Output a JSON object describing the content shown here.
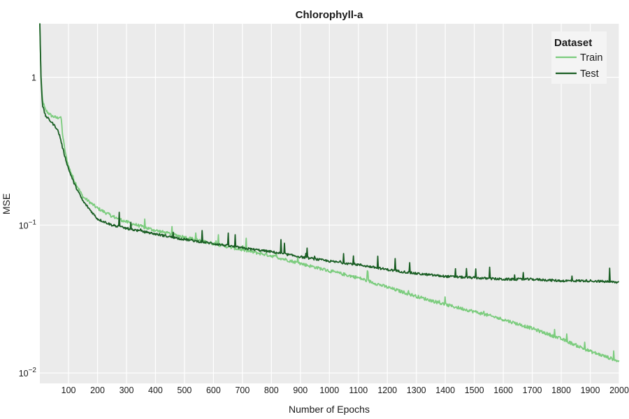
{
  "chart_data": {
    "type": "line",
    "title": "Chlorophyll-a",
    "xlabel": "Number of Epochs",
    "ylabel": "MSE",
    "x_range": [
      1,
      2000
    ],
    "ylim": [
      0.0085,
      2.3
    ],
    "yscale": "log",
    "grid": true,
    "x_ticks": [
      100,
      200,
      300,
      400,
      500,
      600,
      700,
      800,
      900,
      1000,
      1100,
      1200,
      1300,
      1400,
      1500,
      1600,
      1700,
      1800,
      1900,
      2000
    ],
    "y_ticks": [
      {
        "value": 1,
        "base": "1",
        "exp": ""
      },
      {
        "value": 0.1,
        "base": "10",
        "exp": "−1"
      },
      {
        "value": 0.01,
        "base": "10",
        "exp": "−2"
      }
    ],
    "legend": {
      "title": "Dataset",
      "position": "top-right"
    },
    "series": [
      {
        "name": "Train",
        "color": "#7bcc7d",
        "x": [
          1,
          5,
          10,
          20,
          40,
          60,
          70,
          75,
          80,
          90,
          100,
          120,
          150,
          200,
          250,
          300,
          350,
          400,
          500,
          600,
          700,
          800,
          900,
          1000,
          1100,
          1200,
          1300,
          1400,
          1500,
          1600,
          1700,
          1800,
          1900,
          2000
        ],
        "values": [
          2.3,
          1.0,
          0.7,
          0.6,
          0.55,
          0.53,
          0.54,
          0.52,
          0.4,
          0.3,
          0.25,
          0.2,
          0.155,
          0.13,
          0.115,
          0.105,
          0.098,
          0.092,
          0.083,
          0.075,
          0.068,
          0.062,
          0.055,
          0.049,
          0.044,
          0.038,
          0.033,
          0.029,
          0.026,
          0.023,
          0.02,
          0.017,
          0.014,
          0.012
        ]
      },
      {
        "name": "Test",
        "color": "#1a5e24",
        "x": [
          1,
          5,
          10,
          20,
          40,
          60,
          70,
          80,
          90,
          100,
          120,
          150,
          200,
          250,
          300,
          350,
          400,
          500,
          600,
          700,
          800,
          900,
          1000,
          1100,
          1200,
          1300,
          1400,
          1500,
          1600,
          1700,
          1800,
          1900,
          2000
        ],
        "values": [
          2.3,
          1.0,
          0.65,
          0.55,
          0.5,
          0.45,
          0.4,
          0.33,
          0.28,
          0.24,
          0.19,
          0.145,
          0.11,
          0.1,
          0.095,
          0.091,
          0.087,
          0.08,
          0.075,
          0.07,
          0.066,
          0.061,
          0.057,
          0.054,
          0.05,
          0.047,
          0.045,
          0.044,
          0.043,
          0.043,
          0.042,
          0.042,
          0.041
        ]
      }
    ]
  }
}
